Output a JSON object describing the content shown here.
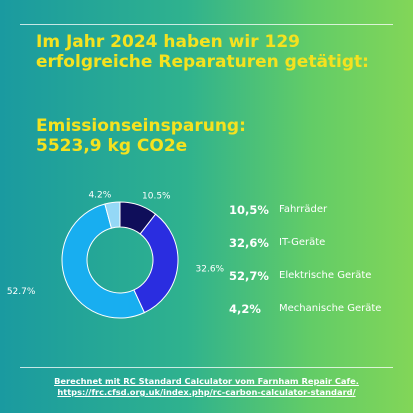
{
  "headline": "Im Jahr 2024 haben wir 129 erfolgreiche Reparaturen getätigt:",
  "emission": {
    "label": "Emissionseinsparung:",
    "value": "5523,9 kg CO2e"
  },
  "chart_data": {
    "type": "pie",
    "donut": true,
    "categories": [
      "Fahrräder",
      "IT-Geräte",
      "Elektrische Geräte",
      "Mechanische Geräte"
    ],
    "values": [
      10.5,
      32.6,
      52.7,
      4.2
    ],
    "data_labels": [
      "10.5%",
      "32.6%",
      "52.7%",
      "4.2%"
    ],
    "colors": [
      "#0f0e5a",
      "#2a2de0",
      "#18aef0",
      "#94d8f6"
    ],
    "legend_placement": "right"
  },
  "legend": [
    {
      "pct": "10,5%",
      "label": "Fahrräder"
    },
    {
      "pct": "32,6%",
      "label": "IT-Geräte"
    },
    {
      "pct": "52,7%",
      "label": "Elektrische Geräte"
    },
    {
      "pct": "4,2%",
      "label": "Mechanische Geräte"
    }
  ],
  "footer": {
    "line1": "Berechnet mit RC Standard Calculator vom Farnham Repair Cafe.",
    "line2": "https://frc.cfsd.org.uk/index.php/rc-carbon-calculator-standard/"
  }
}
